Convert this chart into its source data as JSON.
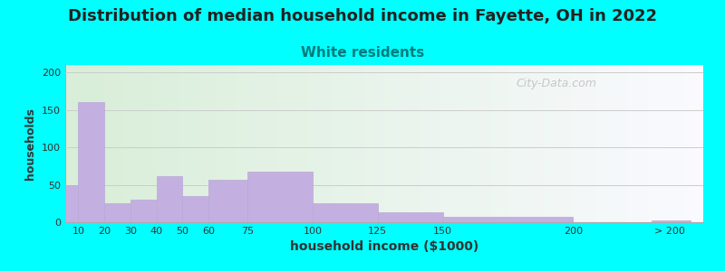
{
  "title": "Distribution of median household income in Fayette, OH in 2022",
  "subtitle": "White residents",
  "xlabel": "household income ($1000)",
  "ylabel": "households",
  "background_outer": "#00FFFF",
  "bar_color": "#C4B0E0",
  "bar_edge_color": "#B8A8D8",
  "categories": [
    "10",
    "20",
    "30",
    "40",
    "50",
    "60",
    "75",
    "100",
    "125",
    "150",
    "200",
    "> 200"
  ],
  "values": [
    50,
    160,
    25,
    30,
    62,
    35,
    57,
    68,
    25,
    13,
    7,
    2
  ],
  "ylim": [
    0,
    210
  ],
  "yticks": [
    0,
    50,
    100,
    150,
    200
  ],
  "title_fontsize": 13,
  "subtitle_fontsize": 11,
  "subtitle_color": "#007B7B",
  "title_color": "#222222",
  "watermark": "City-Data.com",
  "xlabel_fontsize": 10,
  "ylabel_fontsize": 9,
  "tick_fontsize": 8,
  "bar_left_edges": [
    5,
    10,
    20,
    30,
    40,
    50,
    60,
    75,
    100,
    125,
    150,
    200,
    230
  ],
  "grid_color": "#cccccc",
  "plot_bg_left_color": "#d8eed8",
  "plot_bg_right_color": "#f8f8ff"
}
